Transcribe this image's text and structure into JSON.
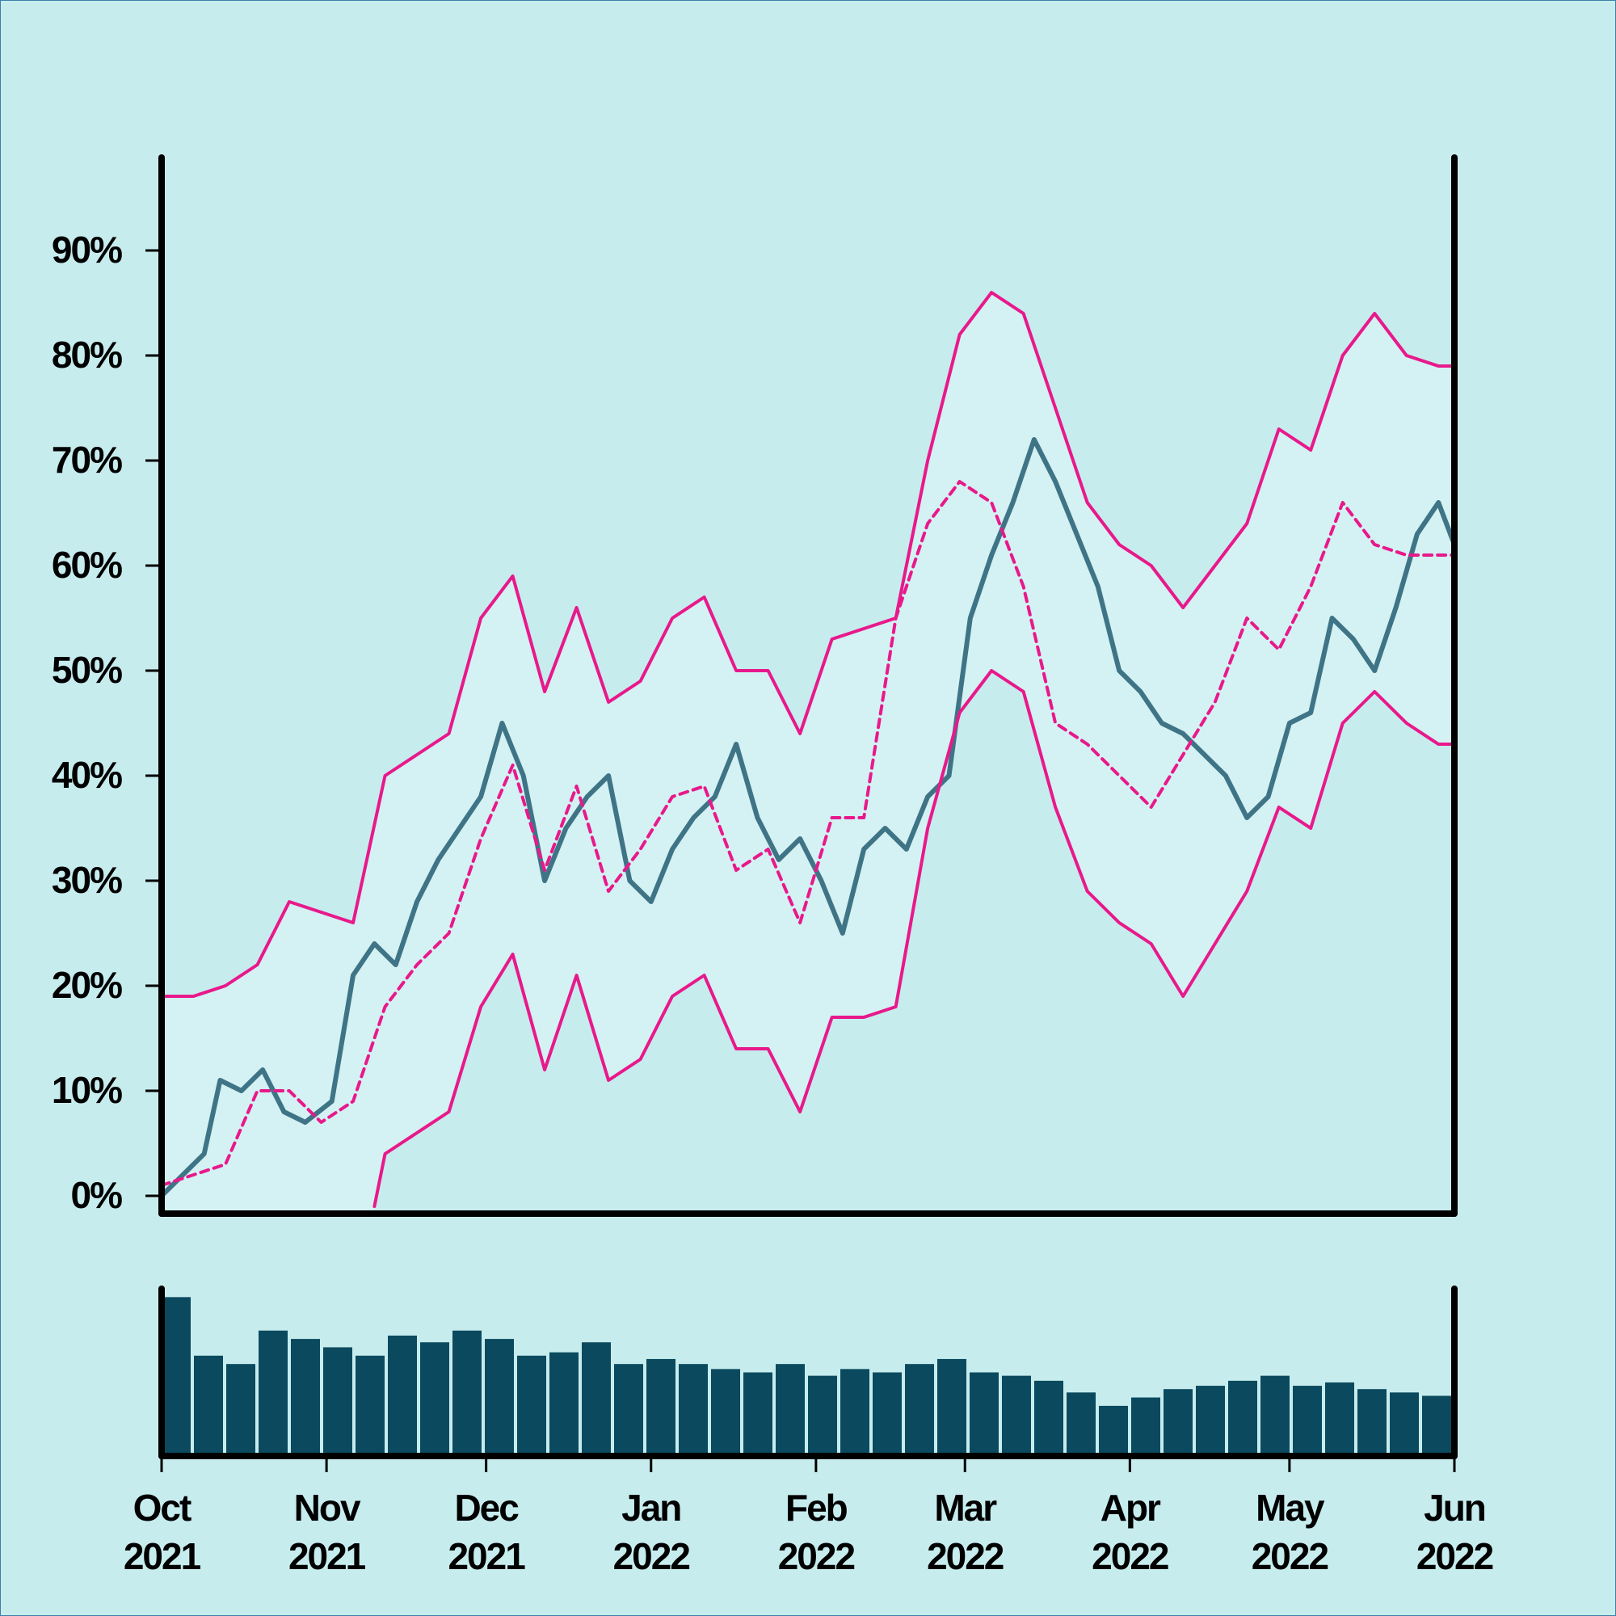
{
  "colors": {
    "background": "#c7ecee",
    "band_fill": "#d4f1f3",
    "price_line": "#3e7486",
    "band_line": "#e8198b",
    "volume_bar": "#0b4a5e",
    "axis": "#000000"
  },
  "chart_data": [
    {
      "type": "line",
      "title": "",
      "xlabel": "",
      "ylabel": "",
      "x_range": [
        "2021-10-01",
        "2022-06-01"
      ],
      "ylim": [
        -0.5,
        98
      ],
      "y_unit": "%",
      "y_ticks": [
        0,
        10,
        20,
        30,
        40,
        50,
        60,
        70,
        80,
        90
      ],
      "y_tick_labels": [
        "0%",
        "10%",
        "20%",
        "30%",
        "40%",
        "50%",
        "60%",
        "70%",
        "80%",
        "90%"
      ],
      "x_ticks": [
        "2021-10-01",
        "2021-11-01",
        "2021-12-01",
        "2022-01-01",
        "2022-02-01",
        "2022-03-01",
        "2022-04-01",
        "2022-05-01",
        "2022-06-01"
      ],
      "x_tick_labels": [
        [
          "Oct",
          "2021"
        ],
        [
          "Nov",
          "2021"
        ],
        [
          "Dec",
          "2021"
        ],
        [
          "Jan",
          "2022"
        ],
        [
          "Feb",
          "2022"
        ],
        [
          "Mar",
          "2022"
        ],
        [
          "Apr",
          "2022"
        ],
        [
          "May",
          "2022"
        ],
        [
          "Jun",
          "2022"
        ]
      ],
      "grid": false,
      "series": [
        {
          "role": "value",
          "style": "solid",
          "x": [
            "2021-10-01",
            "2021-10-05",
            "2021-10-09",
            "2021-10-12",
            "2021-10-16",
            "2021-10-20",
            "2021-10-24",
            "2021-10-28",
            "2021-11-02",
            "2021-11-06",
            "2021-11-10",
            "2021-11-14",
            "2021-11-18",
            "2021-11-22",
            "2021-11-26",
            "2021-11-30",
            "2021-12-04",
            "2021-12-08",
            "2021-12-12",
            "2021-12-16",
            "2021-12-20",
            "2021-12-24",
            "2021-12-28",
            "2022-01-01",
            "2022-01-05",
            "2022-01-09",
            "2022-01-13",
            "2022-01-17",
            "2022-01-21",
            "2022-01-25",
            "2022-01-29",
            "2022-02-02",
            "2022-02-06",
            "2022-02-10",
            "2022-02-14",
            "2022-02-18",
            "2022-02-22",
            "2022-02-26",
            "2022-03-02",
            "2022-03-06",
            "2022-03-10",
            "2022-03-14",
            "2022-03-18",
            "2022-03-22",
            "2022-03-26",
            "2022-03-30",
            "2022-04-03",
            "2022-04-07",
            "2022-04-11",
            "2022-04-15",
            "2022-04-19",
            "2022-04-23",
            "2022-04-27",
            "2022-05-01",
            "2022-05-05",
            "2022-05-09",
            "2022-05-13",
            "2022-05-17",
            "2022-05-21",
            "2022-05-25",
            "2022-05-29",
            "2022-06-01"
          ],
          "values": [
            0,
            2,
            4,
            11,
            10,
            12,
            8,
            7,
            9,
            21,
            24,
            22,
            28,
            32,
            35,
            38,
            45,
            40,
            30,
            35,
            38,
            40,
            30,
            28,
            33,
            36,
            38,
            43,
            36,
            32,
            34,
            30,
            25,
            33,
            35,
            33,
            38,
            40,
            55,
            61,
            66,
            72,
            68,
            63,
            58,
            50,
            48,
            45,
            44,
            42,
            40,
            36,
            38,
            45,
            46,
            55,
            53,
            50,
            56,
            63,
            66,
            62
          ]
        },
        {
          "role": "moving-average",
          "style": "dashed",
          "x": [
            "2021-10-01",
            "2021-10-07",
            "2021-10-13",
            "2021-10-19",
            "2021-10-25",
            "2021-10-31",
            "2021-11-06",
            "2021-11-12",
            "2021-11-18",
            "2021-11-24",
            "2021-11-30",
            "2021-12-06",
            "2021-12-12",
            "2021-12-18",
            "2021-12-24",
            "2021-12-30",
            "2022-01-05",
            "2022-01-11",
            "2022-01-17",
            "2022-01-23",
            "2022-01-29",
            "2022-02-04",
            "2022-02-10",
            "2022-02-16",
            "2022-02-22",
            "2022-02-28",
            "2022-03-06",
            "2022-03-12",
            "2022-03-18",
            "2022-03-24",
            "2022-03-30",
            "2022-04-05",
            "2022-04-11",
            "2022-04-17",
            "2022-04-23",
            "2022-04-29",
            "2022-05-05",
            "2022-05-11",
            "2022-05-17",
            "2022-05-23",
            "2022-05-29",
            "2022-06-01"
          ],
          "values": [
            1,
            2,
            3,
            10,
            10,
            7,
            9,
            18,
            22,
            25,
            34,
            41,
            31,
            39,
            29,
            33,
            38,
            39,
            31,
            33,
            26,
            36,
            36,
            55,
            64,
            68,
            66,
            58,
            45,
            43,
            40,
            37,
            42,
            47,
            55,
            52,
            58,
            66,
            62,
            61,
            61,
            61
          ]
        },
        {
          "role": "upper-band",
          "style": "solid",
          "x": [
            "2021-10-01",
            "2021-10-07",
            "2021-10-13",
            "2021-10-19",
            "2021-10-25",
            "2021-10-31",
            "2021-11-06",
            "2021-11-12",
            "2021-11-18",
            "2021-11-24",
            "2021-11-30",
            "2021-12-06",
            "2021-12-12",
            "2021-12-18",
            "2021-12-24",
            "2021-12-30",
            "2022-01-05",
            "2022-01-11",
            "2022-01-17",
            "2022-01-23",
            "2022-01-29",
            "2022-02-04",
            "2022-02-10",
            "2022-02-16",
            "2022-02-22",
            "2022-02-28",
            "2022-03-06",
            "2022-03-12",
            "2022-03-18",
            "2022-03-24",
            "2022-03-30",
            "2022-04-05",
            "2022-04-11",
            "2022-04-17",
            "2022-04-23",
            "2022-04-29",
            "2022-05-05",
            "2022-05-11",
            "2022-05-17",
            "2022-05-23",
            "2022-05-29",
            "2022-06-01"
          ],
          "values": [
            19,
            19,
            20,
            22,
            28,
            27,
            26,
            40,
            42,
            44,
            55,
            59,
            48,
            56,
            47,
            49,
            55,
            57,
            50,
            50,
            44,
            53,
            54,
            55,
            70,
            82,
            86,
            84,
            75,
            66,
            62,
            60,
            56,
            60,
            64,
            73,
            71,
            80,
            84,
            80,
            79,
            79
          ]
        },
        {
          "role": "lower-band",
          "style": "solid",
          "x": [
            "2021-11-10",
            "2021-11-12",
            "2021-11-18",
            "2021-11-24",
            "2021-11-30",
            "2021-12-06",
            "2021-12-12",
            "2021-12-18",
            "2021-12-24",
            "2021-12-30",
            "2022-01-05",
            "2022-01-11",
            "2022-01-17",
            "2022-01-23",
            "2022-01-29",
            "2022-02-04",
            "2022-02-10",
            "2022-02-16",
            "2022-02-22",
            "2022-02-28",
            "2022-03-06",
            "2022-03-12",
            "2022-03-18",
            "2022-03-24",
            "2022-03-30",
            "2022-04-05",
            "2022-04-11",
            "2022-04-17",
            "2022-04-23",
            "2022-04-29",
            "2022-05-05",
            "2022-05-11",
            "2022-05-17",
            "2022-05-23",
            "2022-05-29",
            "2022-06-01"
          ],
          "values": [
            -1,
            4,
            6,
            8,
            18,
            23,
            12,
            21,
            11,
            13,
            19,
            21,
            14,
            14,
            8,
            17,
            17,
            18,
            35,
            46,
            50,
            48,
            37,
            29,
            26,
            24,
            19,
            24,
            29,
            37,
            35,
            45,
            48,
            45,
            43,
            43
          ]
        }
      ]
    },
    {
      "type": "bar",
      "role": "volume",
      "x_range": [
        "2021-10-01",
        "2022-06-01"
      ],
      "relative_heights": [
        0.95,
        0.6,
        0.55,
        0.75,
        0.7,
        0.65,
        0.6,
        0.72,
        0.68,
        0.75,
        0.7,
        0.6,
        0.62,
        0.68,
        0.55,
        0.58,
        0.55,
        0.52,
        0.5,
        0.55,
        0.48,
        0.52,
        0.5,
        0.55,
        0.58,
        0.5,
        0.48,
        0.45,
        0.38,
        0.3,
        0.35,
        0.4,
        0.42,
        0.45,
        0.48,
        0.42,
        0.44,
        0.4,
        0.38,
        0.36
      ]
    }
  ]
}
